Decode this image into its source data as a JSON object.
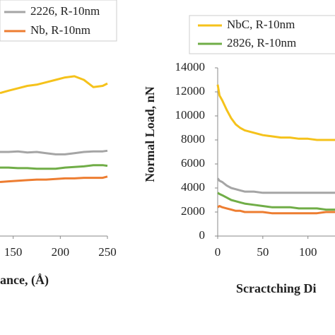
{
  "chart_data": [
    {
      "type": "line",
      "xlabel": "ance, (Å)",
      "x": [
        136,
        145,
        155,
        165,
        175,
        185,
        195,
        205,
        215,
        225,
        235,
        245,
        250
      ],
      "series": [
        {
          "color": "#f5c21b",
          "values": [
            11900,
            12100,
            12300,
            12500,
            12600,
            12800,
            13000,
            13200,
            13300,
            13000,
            12400,
            12500,
            12700
          ]
        },
        {
          "name": "2226, R-10nm",
          "color": "#a5a5a5",
          "values": [
            7000,
            7000,
            7050,
            6950,
            7000,
            6900,
            6800,
            6800,
            6900,
            7000,
            7050,
            7050,
            7100
          ]
        },
        {
          "color": "#70ad47",
          "values": [
            5700,
            5700,
            5650,
            5650,
            5600,
            5600,
            5600,
            5700,
            5750,
            5800,
            5900,
            5900,
            5850
          ]
        },
        {
          "name": "Nb, R-10nm",
          "color": "#ed7d31",
          "values": [
            4500,
            4550,
            4600,
            4650,
            4700,
            4700,
            4750,
            4800,
            4800,
            4850,
            4850,
            4850,
            4950
          ]
        }
      ],
      "xlim": [
        136,
        250
      ],
      "xticks": [
        150,
        200,
        250
      ],
      "ylim": [
        0,
        14000
      ]
    },
    {
      "type": "line",
      "xlabel": "Scractching Di",
      "ylabel": "Normal Load, nN",
      "x": [
        0,
        2,
        5,
        10,
        15,
        20,
        25,
        30,
        40,
        50,
        60,
        70,
        80,
        90,
        100,
        110,
        120,
        130
      ],
      "series": [
        {
          "name": "NbC, R-10nm",
          "color": "#f5c21b",
          "values": [
            12600,
            11700,
            11300,
            10500,
            9800,
            9300,
            9000,
            8800,
            8600,
            8400,
            8300,
            8200,
            8200,
            8100,
            8100,
            8000,
            8000,
            8000
          ]
        },
        {
          "color": "#a5a5a5",
          "values": [
            4800,
            4600,
            4500,
            4200,
            4000,
            3900,
            3800,
            3700,
            3700,
            3600,
            3600,
            3600,
            3600,
            3600,
            3600,
            3600,
            3600,
            3600
          ]
        },
        {
          "name": "2826, R-10nm",
          "color": "#70ad47",
          "values": [
            3600,
            3500,
            3400,
            3200,
            3000,
            2900,
            2800,
            2700,
            2600,
            2500,
            2400,
            2400,
            2400,
            2300,
            2300,
            2300,
            2200,
            2200
          ]
        },
        {
          "color": "#ed7d31",
          "values": [
            2400,
            2500,
            2400,
            2300,
            2200,
            2100,
            2100,
            2000,
            2000,
            2000,
            1900,
            1900,
            1900,
            1900,
            1900,
            1900,
            2000,
            2000
          ]
        }
      ],
      "xlim": [
        0,
        130
      ],
      "xticks": [
        0,
        50,
        100
      ],
      "ylim": [
        0,
        14000
      ],
      "yticks": [
        0,
        2000,
        4000,
        6000,
        8000,
        10000,
        12000,
        14000
      ]
    }
  ]
}
